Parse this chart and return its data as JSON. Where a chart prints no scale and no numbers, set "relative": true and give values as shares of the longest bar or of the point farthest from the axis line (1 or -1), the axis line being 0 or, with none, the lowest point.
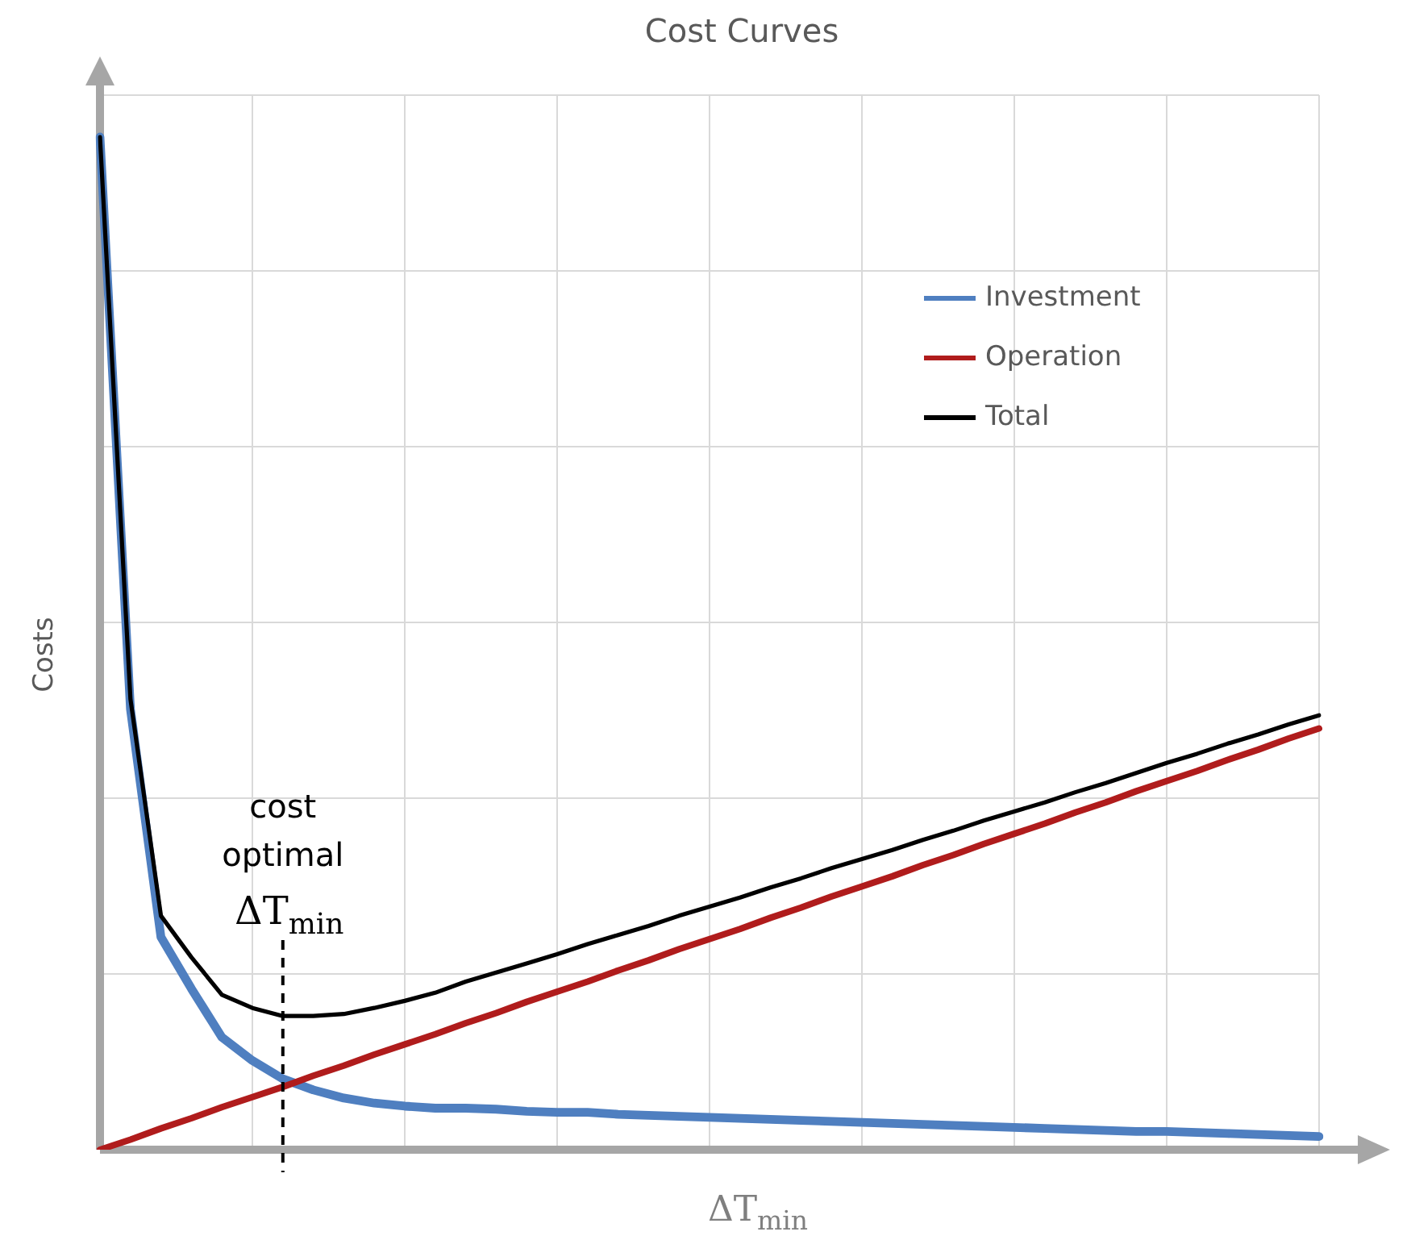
{
  "chart_data": {
    "type": "line",
    "title": "Cost Curves",
    "xlabel": "ΔT$_{min}$",
    "ylabel": "Costs",
    "relative": true,
    "grid": true,
    "legend": "top right",
    "marker": "none",
    "line_style": "solid",
    "categories": [
      null,
      null,
      null,
      null,
      null,
      null,
      null,
      null,
      null,
      null,
      null,
      null,
      null,
      null,
      null,
      null,
      null,
      null,
      null,
      null,
      null,
      null,
      null,
      null,
      null,
      null,
      null,
      null,
      null,
      null,
      null,
      null,
      null,
      null,
      null,
      null,
      null,
      null,
      null,
      null,
      null
    ],
    "series": [
      {
        "name": "Investment",
        "color": "#4f7fc0",
        "values": [
          1.0,
          0.435,
          0.21,
          0.159,
          0.111,
          0.088,
          0.07,
          0.059,
          0.051,
          0.046,
          0.043,
          0.041,
          0.041,
          0.04,
          0.038,
          0.037,
          0.037,
          0.035,
          0.034,
          0.033,
          0.032,
          0.031,
          0.03,
          0.029,
          0.028,
          0.027,
          0.026,
          0.025,
          0.024,
          0.023,
          0.022,
          0.021,
          0.02,
          0.019,
          0.018,
          0.018,
          0.017,
          0.016,
          0.015,
          0.014,
          0.013
        ]
      },
      {
        "name": "Operation",
        "color": "#b01c1c",
        "values": [
          0,
          0.01,
          0.021,
          0.031,
          0.042,
          0.052,
          0.062,
          0.073,
          0.083,
          0.094,
          0.104,
          0.114,
          0.125,
          0.135,
          0.146,
          0.156,
          0.166,
          0.177,
          0.187,
          0.198,
          0.208,
          0.218,
          0.229,
          0.239,
          0.25,
          0.26,
          0.27,
          0.281,
          0.291,
          0.302,
          0.312,
          0.322,
          0.333,
          0.343,
          0.354,
          0.364,
          0.374,
          0.385,
          0.395,
          0.406,
          0.416
        ]
      },
      {
        "name": "Total",
        "color": "#000000",
        "values": [
          1.0,
          0.445,
          0.231,
          0.19,
          0.153,
          0.14,
          0.132,
          0.132,
          0.134,
          0.14,
          0.147,
          0.155,
          0.166,
          0.175,
          0.184,
          0.193,
          0.203,
          0.212,
          0.221,
          0.231,
          0.24,
          0.249,
          0.259,
          0.268,
          0.278,
          0.287,
          0.296,
          0.306,
          0.315,
          0.325,
          0.334,
          0.343,
          0.353,
          0.362,
          0.372,
          0.382,
          0.391,
          0.401,
          0.41,
          0.42,
          0.429
        ]
      }
    ],
    "annotations": [
      "cost\noptimal\nΔT$_{min}$"
    ]
  }
}
